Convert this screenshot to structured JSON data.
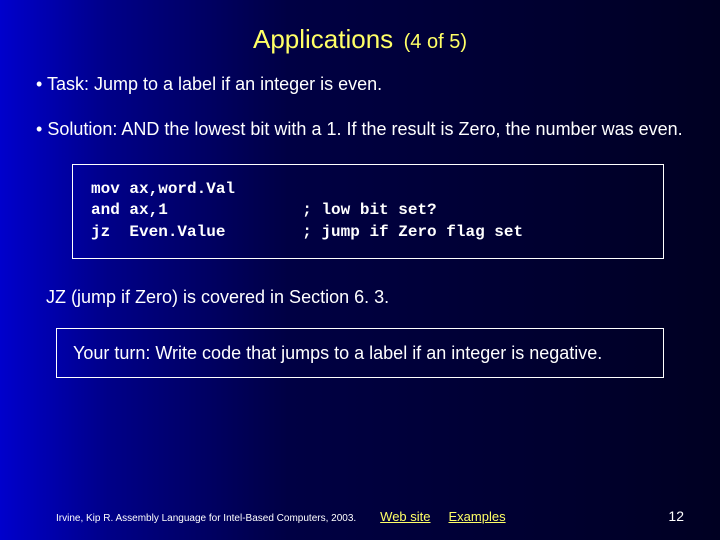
{
  "title": {
    "main": "Applications",
    "sub": "(4 of 5)"
  },
  "bullets": [
    "Task: Jump to a label if an integer is even.",
    "Solution: AND the lowest bit with a 1. If the result is Zero, the number was even."
  ],
  "code": "mov ax,word.Val\nand ax,1              ; low bit set?\njz  Even.Value        ; jump if Zero flag set",
  "note": "JZ (jump if Zero) is covered in Section 6. 3.",
  "exercise": "Your turn: Write code that jumps to a label if an integer is negative.",
  "footer": {
    "credit": "Irvine, Kip R. Assembly Language for Intel-Based Computers, 2003.",
    "link1": "Web site",
    "link2": "Examples",
    "page": "12"
  },
  "colors": {
    "title": "#ffff66",
    "text": "#ffffff",
    "link": "#ffff66",
    "border": "#ffffff"
  }
}
